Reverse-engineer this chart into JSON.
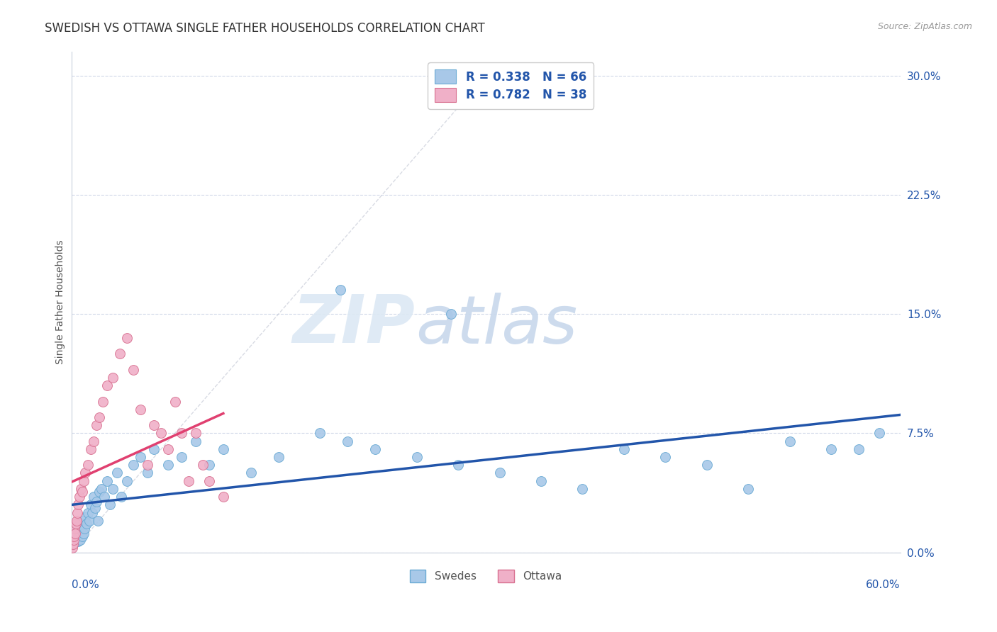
{
  "title": "SWEDISH VS OTTAWA SINGLE FATHER HOUSEHOLDS CORRELATION CHART",
  "source": "Source: ZipAtlas.com",
  "ylabel": "Single Father Households",
  "ytick_values": [
    0.0,
    7.5,
    15.0,
    22.5,
    30.0
  ],
  "xlim": [
    0.0,
    60.0
  ],
  "ylim": [
    0.0,
    31.5
  ],
  "swedes_R": 0.338,
  "swedes_N": 66,
  "ottawa_R": 0.782,
  "ottawa_N": 38,
  "blue_marker_color": "#a8c8e8",
  "blue_edge_color": "#6aaad4",
  "blue_line_color": "#2255aa",
  "pink_marker_color": "#f0b0c8",
  "pink_edge_color": "#d87090",
  "pink_line_color": "#e04070",
  "legend_text_color": "#2255aa",
  "background_color": "#ffffff",
  "grid_color": "#d0d8e8",
  "diag_color": "#c8ccd8",
  "watermark_zip_color": "#dce8f4",
  "watermark_atlas_color": "#c8d8ec",
  "title_color": "#333333",
  "source_color": "#999999",
  "ylabel_color": "#555555",
  "xtick_color": "#2255aa",
  "ytick_color": "#2255aa",
  "swedes_x": [
    0.1,
    0.15,
    0.2,
    0.25,
    0.3,
    0.35,
    0.4,
    0.45,
    0.5,
    0.55,
    0.6,
    0.65,
    0.7,
    0.75,
    0.8,
    0.85,
    0.9,
    0.95,
    1.0,
    1.1,
    1.2,
    1.3,
    1.4,
    1.5,
    1.6,
    1.7,
    1.8,
    1.9,
    2.0,
    2.2,
    2.4,
    2.6,
    2.8,
    3.0,
    3.3,
    3.6,
    4.0,
    4.5,
    5.0,
    5.5,
    6.0,
    7.0,
    8.0,
    9.0,
    10.0,
    11.0,
    13.0,
    15.0,
    18.0,
    20.0,
    22.0,
    25.0,
    28.0,
    31.0,
    34.0,
    37.0,
    40.0,
    43.0,
    46.0,
    49.0,
    52.0,
    55.0,
    57.0,
    58.5,
    19.5,
    27.5
  ],
  "swedes_y": [
    0.5,
    0.8,
    1.0,
    0.6,
    1.2,
    0.9,
    1.5,
    1.1,
    0.7,
    1.3,
    1.8,
    0.8,
    1.4,
    1.6,
    1.0,
    2.0,
    1.2,
    1.5,
    2.2,
    1.8,
    2.5,
    2.0,
    3.0,
    2.5,
    3.5,
    2.8,
    3.2,
    2.0,
    3.8,
    4.0,
    3.5,
    4.5,
    3.0,
    4.0,
    5.0,
    3.5,
    4.5,
    5.5,
    6.0,
    5.0,
    6.5,
    5.5,
    6.0,
    7.0,
    5.5,
    6.5,
    5.0,
    6.0,
    7.5,
    7.0,
    6.5,
    6.0,
    5.5,
    5.0,
    4.5,
    4.0,
    6.5,
    6.0,
    5.5,
    4.0,
    7.0,
    6.5,
    6.5,
    7.5,
    16.5,
    15.0
  ],
  "ottawa_x": [
    0.05,
    0.1,
    0.15,
    0.2,
    0.25,
    0.3,
    0.35,
    0.4,
    0.45,
    0.5,
    0.6,
    0.7,
    0.8,
    0.9,
    1.0,
    1.2,
    1.4,
    1.6,
    1.8,
    2.0,
    2.3,
    2.6,
    3.0,
    3.5,
    4.0,
    4.5,
    5.0,
    5.5,
    6.0,
    6.5,
    7.0,
    7.5,
    8.0,
    8.5,
    9.0,
    9.5,
    10.0,
    11.0
  ],
  "ottawa_y": [
    0.3,
    0.5,
    0.8,
    1.0,
    1.5,
    1.2,
    1.8,
    2.0,
    2.5,
    3.0,
    3.5,
    4.0,
    3.8,
    4.5,
    5.0,
    5.5,
    6.5,
    7.0,
    8.0,
    8.5,
    9.5,
    10.5,
    11.0,
    12.5,
    13.5,
    11.5,
    9.0,
    5.5,
    8.0,
    7.5,
    6.5,
    9.5,
    7.5,
    4.5,
    7.5,
    5.5,
    4.5,
    3.5
  ]
}
